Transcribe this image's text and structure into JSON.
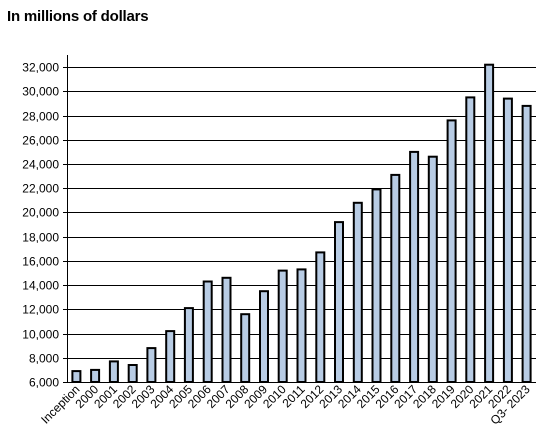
{
  "chart_data": {
    "type": "bar",
    "title": "In millions of dollars",
    "categories": [
      "Inception",
      "2000",
      "2001",
      "2002",
      "2003",
      "2004",
      "2005",
      "2006",
      "2007",
      "2008",
      "2009",
      "2010",
      "2011",
      "2012",
      "2013",
      "2014",
      "2015",
      "2016",
      "2017",
      "2018",
      "2019",
      "2020",
      "2021",
      "2022",
      "Q3- 2023"
    ],
    "values": [
      6900,
      7000,
      7700,
      7400,
      8800,
      10200,
      12100,
      14300,
      14600,
      11600,
      13500,
      15200,
      15300,
      16700,
      19200,
      20800,
      21900,
      23100,
      25000,
      24600,
      27600,
      29500,
      32200,
      29400,
      28800
    ],
    "ylim": [
      6000,
      33000
    ],
    "yticks": [
      6000,
      8000,
      10000,
      12000,
      14000,
      16000,
      18000,
      20000,
      22000,
      24000,
      26000,
      28000,
      30000,
      32000
    ],
    "grid": true,
    "colors": {
      "bar_fill": "#b8cce4",
      "bar_stroke": "#000000",
      "grid": "#000000"
    }
  }
}
